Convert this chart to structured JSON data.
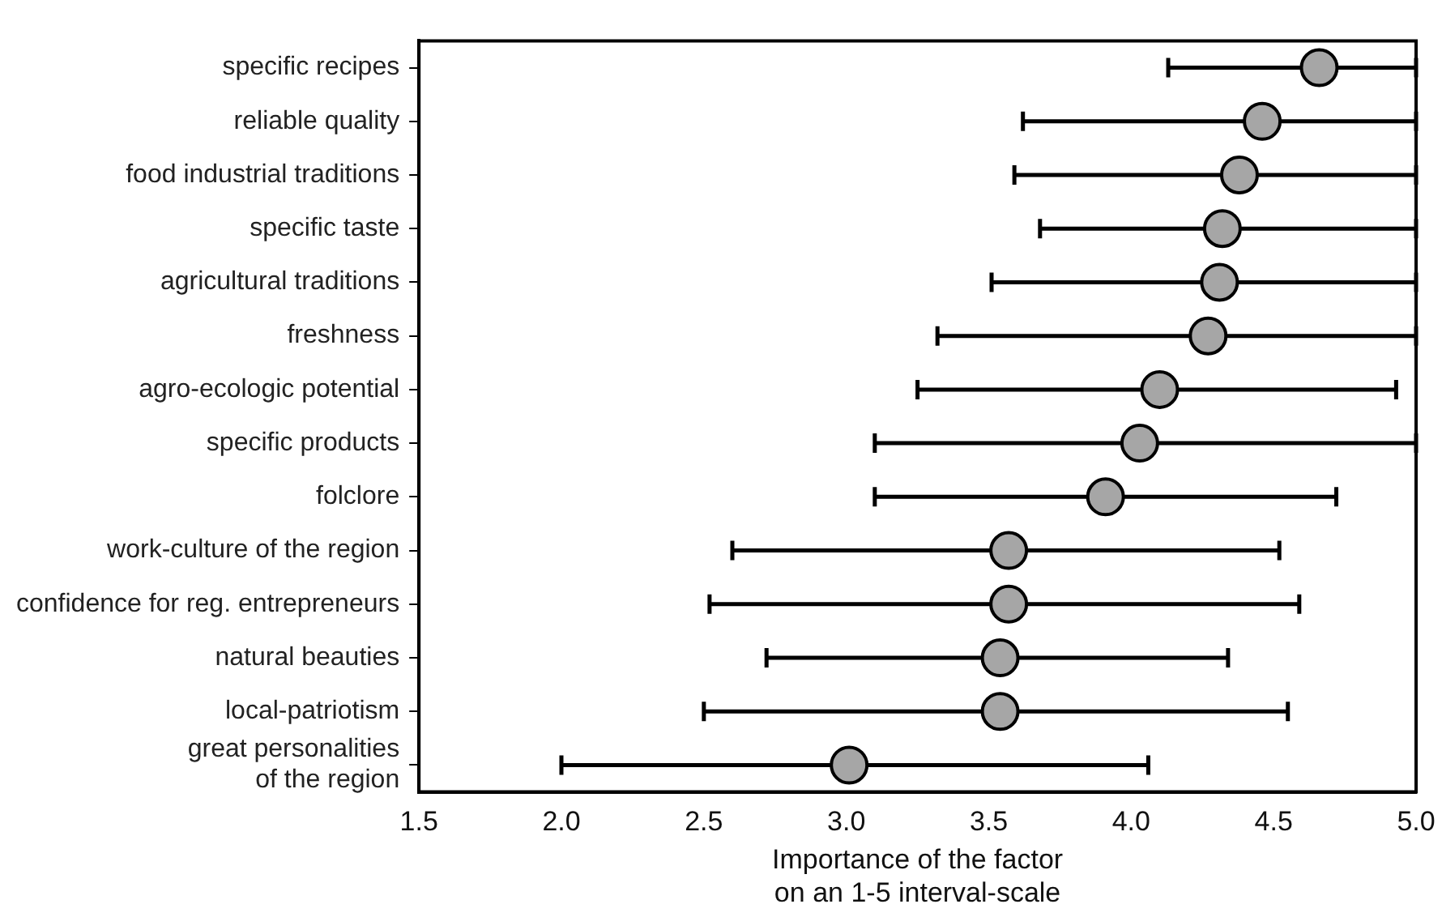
{
  "chart_data": {
    "type": "scatter",
    "orientation": "horizontal",
    "xlabel": "Importance of the factor\non an 1-5 interval-scale",
    "categories": [
      "specific recipes",
      "reliable quality",
      "food industrial traditions",
      "specific taste",
      "agricultural traditions",
      "freshness",
      "agro-ecologic potential",
      "specific products",
      "folclore",
      "work-culture of the region",
      "confidence for reg. entrepreneurs",
      "natural beauties",
      "local-patriotism",
      "great personalities\nof the region"
    ],
    "values": [
      4.66,
      4.46,
      4.38,
      4.32,
      4.31,
      4.27,
      4.1,
      4.03,
      3.91,
      3.57,
      3.57,
      3.54,
      3.54,
      3.01
    ],
    "errors": [
      [
        4.13,
        5.0
      ],
      [
        3.62,
        5.0
      ],
      [
        3.59,
        5.0
      ],
      [
        3.68,
        5.0
      ],
      [
        3.51,
        5.0
      ],
      [
        3.32,
        5.0
      ],
      [
        3.25,
        4.93
      ],
      [
        3.1,
        5.0
      ],
      [
        3.1,
        4.72
      ],
      [
        2.6,
        4.52
      ],
      [
        2.52,
        4.59
      ],
      [
        2.72,
        4.34
      ],
      [
        2.5,
        4.55
      ],
      [
        2.0,
        4.06
      ]
    ],
    "color": "#a6a6a6",
    "marker": "circle",
    "grid": false,
    "legend": false,
    "xlim": [
      1.5,
      5.0
    ],
    "xticks": [
      {
        "value": 1.5,
        "label": "1.5"
      },
      {
        "value": 2.0,
        "label": "2.0"
      },
      {
        "value": 2.5,
        "label": "2.5"
      },
      {
        "value": 3.0,
        "label": "3.0"
      },
      {
        "value": 3.5,
        "label": "3.5"
      },
      {
        "value": 4.0,
        "label": "4.0"
      },
      {
        "value": 4.5,
        "label": "4.5"
      },
      {
        "value": 5.0,
        "label": "5.0"
      }
    ]
  }
}
